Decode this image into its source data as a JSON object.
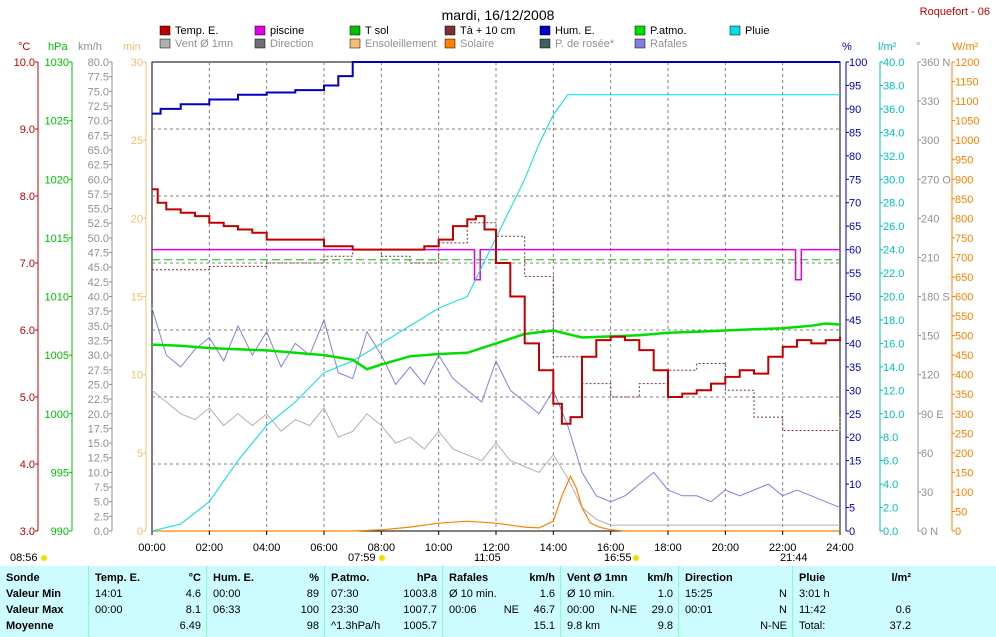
{
  "title": "mardi, 16/12/2008",
  "station": "Roquefort - 06",
  "colors": {
    "temp": "#c00000",
    "piscine": "#e000e0",
    "tsol": "#00c000",
    "t10": "#7a3030",
    "hum": "#0000c0",
    "patmo": "#00dd00",
    "pluie": "#00e0e0",
    "vent": "#b0b0b0",
    "direction": "#707070",
    "ensoleillement": "#f0c070",
    "solaire": "#ff8000",
    "rosee": "#406060",
    "rafales": "#8080e0",
    "grid": "#808080",
    "stats_bg": "#ccfcff"
  },
  "axis_units": {
    "left1": "°C",
    "left2": "hPa",
    "left3": "km/h",
    "left4": "min",
    "right1": "%",
    "right2": "l/m²",
    "right3": "°",
    "right4": "W/m²"
  },
  "legend": [
    {
      "label": "Temp. E.",
      "color": "#c00000"
    },
    {
      "label": "piscine",
      "color": "#e000e0"
    },
    {
      "label": "T sol",
      "color": "#00c000"
    },
    {
      "label": "Tà + 10 cm",
      "color": "#7a3030"
    },
    {
      "label": "Hum. E.",
      "color": "#0000c0"
    },
    {
      "label": "P.atmo.",
      "color": "#00dd00"
    },
    {
      "label": "Pluie",
      "color": "#00e0e0"
    },
    {
      "label": "Vent Ø 1mn",
      "color": "#b0b0b0"
    },
    {
      "label": "Direction",
      "color": "#707070"
    },
    {
      "label": "Ensoleillement",
      "color": "#f0c070"
    },
    {
      "label": "Solaire",
      "color": "#ff8000"
    },
    {
      "label": "P. de rosée*",
      "color": "#406060"
    },
    {
      "label": "Rafales",
      "color": "#8080e0"
    }
  ],
  "chart_data": {
    "type": "line",
    "title": "mardi, 16/12/2008",
    "x_ticks": [
      "00:00",
      "02:00",
      "04:00",
      "06:00",
      "08:00",
      "10:00",
      "12:00",
      "14:00",
      "16:00",
      "18:00",
      "20:00",
      "22:00",
      "24:00"
    ],
    "x_range_hours": [
      0,
      24
    ],
    "grid": true,
    "legend_placement": "top",
    "y_axes": {
      "temp_c": {
        "min": 3.0,
        "max": 10.0,
        "ticks": [
          "3.0",
          "4.0",
          "5.0",
          "6.0",
          "7.0",
          "8.0",
          "9.0",
          "10.0"
        ]
      },
      "pressure_hpa": {
        "min": 990,
        "max": 1030,
        "ticks": [
          "990",
          "995",
          "1000",
          "1005",
          "1010",
          "1015",
          "1020",
          "1025",
          "1030"
        ]
      },
      "wind_kmh": {
        "min": 0.0,
        "max": 80.0,
        "ticks": [
          "0.0",
          "2.5",
          "5.0",
          "7.5",
          "10.0",
          "12.5",
          "15.0",
          "17.5",
          "20.0",
          "22.5",
          "25.0",
          "27.5",
          "30.0",
          "32.5",
          "35.0",
          "37.5",
          "40.0",
          "42.5",
          "45.0",
          "47.5",
          "50.0",
          "52.5",
          "55.0",
          "57.5",
          "60.0",
          "62.5",
          "65.0",
          "67.5",
          "70.0",
          "72.5",
          "75.0",
          "77.5",
          "80.0"
        ]
      },
      "minutes": {
        "min": 0,
        "max": 30,
        "ticks": [
          "0",
          "5",
          "10",
          "15",
          "20",
          "25",
          "30"
        ]
      },
      "humidity_pct": {
        "min": 0,
        "max": 100,
        "ticks": [
          "0",
          "5",
          "10",
          "15",
          "20",
          "25",
          "30",
          "35",
          "40",
          "45",
          "50",
          "55",
          "60",
          "65",
          "70",
          "75",
          "80",
          "85",
          "90",
          "95",
          "100"
        ]
      },
      "rain_lm2": {
        "min": 0.0,
        "max": 40.0,
        "ticks": [
          "0.0",
          "2.0",
          "4.0",
          "6.0",
          "8.0",
          "10.0",
          "12.0",
          "14.0",
          "16.0",
          "18.0",
          "20.0",
          "22.0",
          "24.0",
          "26.0",
          "28.0",
          "30.0",
          "32.0",
          "34.0",
          "36.0",
          "38.0",
          "40.0"
        ]
      },
      "direction_deg": {
        "min": 0,
        "max": 360,
        "ticks": [
          "0  N",
          "30",
          "60",
          "90  E",
          "120",
          "150",
          "180  S",
          "210",
          "240",
          "270  O",
          "300",
          "330",
          "360  N"
        ]
      },
      "solar_wm2": {
        "min": 0,
        "max": 1200,
        "ticks": [
          "0",
          "50",
          "100",
          "150",
          "200",
          "250",
          "300",
          "350",
          "400",
          "450",
          "500",
          "550",
          "600",
          "650",
          "700",
          "750",
          "800",
          "850",
          "900",
          "950",
          "1000",
          "1050",
          "1100",
          "1150",
          "1200"
        ]
      }
    },
    "series": [
      {
        "name": "Temp. E.",
        "axis": "temp_c",
        "x": [
          0,
          0.2,
          0.5,
          1,
          1.5,
          2,
          2.5,
          3,
          3.5,
          4,
          5,
          6,
          7,
          8,
          9,
          9.5,
          10,
          10.5,
          11,
          11.3,
          11.6,
          12,
          12.5,
          13,
          13.5,
          14,
          14.3,
          14.6,
          15,
          15.5,
          16,
          16.5,
          17,
          17.5,
          18,
          18.5,
          19,
          19.5,
          20,
          20.5,
          21,
          21.5,
          22,
          22.5,
          23,
          23.5,
          24
        ],
        "y": [
          8.1,
          7.9,
          7.8,
          7.75,
          7.7,
          7.6,
          7.55,
          7.5,
          7.45,
          7.35,
          7.35,
          7.25,
          7.2,
          7.2,
          7.2,
          7.25,
          7.35,
          7.55,
          7.65,
          7.7,
          7.5,
          7.0,
          6.5,
          5.8,
          5.4,
          4.9,
          4.6,
          4.7,
          5.6,
          5.85,
          5.9,
          5.85,
          5.7,
          5.4,
          5.0,
          5.05,
          5.1,
          5.2,
          5.3,
          5.4,
          5.35,
          5.6,
          5.75,
          5.85,
          5.8,
          5.85,
          5.9
        ]
      },
      {
        "name": "piscine",
        "axis": "temp_c",
        "x": [
          0,
          11.2,
          11.25,
          11.4,
          11.45,
          22.4,
          22.45,
          22.6,
          22.65,
          24
        ],
        "y": [
          7.2,
          7.2,
          6.75,
          6.75,
          7.2,
          7.2,
          6.75,
          6.75,
          7.2,
          7.2
        ]
      },
      {
        "name": "T sol",
        "axis": "temp_c",
        "x": [
          0,
          24
        ],
        "y": [
          7.05,
          7.05
        ]
      },
      {
        "name": "P.atmo.",
        "axis": "pressure_hpa",
        "x": [
          0,
          1,
          2,
          3,
          4,
          5,
          6,
          7,
          7.5,
          8,
          9,
          10,
          11,
          12,
          13,
          14,
          15,
          16,
          17,
          18,
          19,
          20,
          21,
          22,
          23,
          23.5,
          24
        ],
        "y": [
          1005.9,
          1005.8,
          1005.6,
          1005.5,
          1005.4,
          1005.2,
          1005.0,
          1004.6,
          1003.8,
          1004.2,
          1004.9,
          1005.1,
          1005.2,
          1006.0,
          1006.8,
          1007.1,
          1006.5,
          1006.6,
          1006.7,
          1006.9,
          1007.0,
          1007.1,
          1007.2,
          1007.3,
          1007.5,
          1007.7,
          1007.6
        ]
      },
      {
        "name": "Hum. E.",
        "axis": "humidity_pct",
        "x": [
          0,
          0.3,
          1,
          2,
          3,
          4,
          5,
          6,
          6.5,
          7,
          8,
          9,
          10,
          11,
          12,
          13,
          14,
          24
        ],
        "y": [
          89,
          90,
          91,
          92,
          93,
          93.5,
          94,
          95,
          97,
          100,
          100,
          100,
          100,
          100,
          100,
          100,
          100,
          100
        ]
      },
      {
        "name": "Pluie",
        "axis": "rain_lm2",
        "x": [
          0,
          1,
          2,
          3,
          4,
          5,
          6,
          7,
          8,
          9,
          10,
          11,
          12,
          13,
          13.5,
          14,
          14.5,
          14.8,
          15,
          16,
          24
        ],
        "y": [
          0,
          0.6,
          2.5,
          6,
          9,
          11,
          13.5,
          14.5,
          16,
          17.5,
          19,
          20,
          25,
          30,
          33,
          35.5,
          37.2,
          37.2,
          37.2,
          37.2,
          37.2
        ]
      },
      {
        "name": "Solaire",
        "axis": "solar_wm2",
        "x": [
          0,
          7,
          8,
          9,
          10,
          11,
          12,
          13,
          13.5,
          14,
          14.3,
          14.6,
          14.8,
          15,
          15.3,
          15.6,
          16,
          16.5,
          17,
          24
        ],
        "y": [
          0,
          0,
          3,
          10,
          20,
          25,
          20,
          10,
          8,
          25,
          90,
          140,
          110,
          60,
          20,
          10,
          3,
          0,
          0,
          0
        ]
      },
      {
        "name": "Tà + 10 cm",
        "axis": "temp_c",
        "x": [
          0,
          1,
          2,
          3,
          4,
          5,
          6,
          7,
          8,
          9,
          10,
          11,
          12,
          13,
          14,
          15,
          16,
          17,
          18,
          19,
          20,
          21,
          22,
          23,
          24
        ],
        "y": [
          6.9,
          6.9,
          6.95,
          6.95,
          7.0,
          7.0,
          7.1,
          7.2,
          7.1,
          7.0,
          7.3,
          7.6,
          7.4,
          6.8,
          5.6,
          5.2,
          5.0,
          5.2,
          5.4,
          5.5,
          5.1,
          4.7,
          4.5,
          4.5,
          4.7
        ]
      },
      {
        "name": "Rafales",
        "axis": "wind_kmh",
        "x": [
          0,
          0.5,
          1,
          1.5,
          2,
          2.5,
          3,
          3.5,
          4,
          4.5,
          5,
          5.5,
          6,
          6.5,
          7,
          7.5,
          8,
          8.5,
          9,
          9.5,
          10,
          10.5,
          11,
          11.5,
          12,
          12.5,
          13,
          13.5,
          14,
          14.5,
          15,
          15.5,
          16,
          16.5,
          17,
          17.5,
          18,
          18.5,
          19,
          19.5,
          20,
          20.5,
          21,
          21.5,
          22,
          22.5,
          23,
          23.5,
          24
        ],
        "y": [
          38,
          30,
          28,
          31,
          33,
          29,
          35,
          30,
          34,
          28,
          32,
          30,
          36,
          27,
          26,
          34,
          30,
          25,
          28,
          25,
          30,
          26,
          24,
          22,
          29,
          24,
          22,
          20,
          24,
          18,
          10,
          6,
          5,
          6,
          8,
          10,
          7,
          6,
          6,
          5,
          7,
          6,
          7,
          8,
          6,
          7,
          6,
          5,
          4
        ]
      },
      {
        "name": "Vent Ø 1mn",
        "axis": "wind_kmh",
        "x": [
          0,
          0.5,
          1,
          1.5,
          2,
          2.5,
          3,
          3.5,
          4,
          4.5,
          5,
          5.5,
          6,
          6.5,
          7,
          7.5,
          8,
          8.5,
          9,
          9.5,
          10,
          10.5,
          11,
          11.5,
          12,
          12.5,
          13,
          13.5,
          14,
          14.5,
          15,
          15.5,
          16,
          17,
          18,
          19,
          20,
          21,
          22,
          23,
          24
        ],
        "y": [
          24,
          22,
          20,
          19,
          21,
          18,
          20,
          18,
          20,
          17,
          19,
          18,
          21,
          16,
          17,
          20,
          18,
          15,
          16,
          14,
          17,
          14,
          13,
          12,
          15,
          12,
          11,
          10,
          13,
          9,
          4,
          2,
          1,
          1,
          1,
          1,
          1,
          1,
          1,
          1,
          1
        ]
      }
    ]
  },
  "time_markers": {
    "sunrise_left": "08:56",
    "sunrise_mid": "07:59",
    "sun_high": "11:05",
    "sunset": "16:55",
    "moon": "21:44"
  },
  "stats": {
    "row_labels": [
      "Sonde",
      "Valeur Min",
      "Valeur Max",
      "Moyenne"
    ],
    "columns": [
      {
        "title": "Temp. E.",
        "unit": "°C",
        "rows": [
          [
            "14:01",
            "",
            "4.6"
          ],
          [
            "00:00",
            "",
            "8.1"
          ],
          [
            "",
            "",
            "6.49"
          ]
        ]
      },
      {
        "title": "Hum. E.",
        "unit": "%",
        "rows": [
          [
            "00:00",
            "",
            "89"
          ],
          [
            "06:33",
            "",
            "100"
          ],
          [
            "",
            "",
            "98"
          ]
        ]
      },
      {
        "title": "P.atmo.",
        "unit": "hPa",
        "rows": [
          [
            "07:30",
            "",
            "1003.8"
          ],
          [
            "23:30",
            "",
            "1007.7"
          ],
          [
            "^1.3hPa/h",
            "",
            "1005.7"
          ]
        ]
      },
      {
        "title": "Rafales",
        "unit": "km/h",
        "rows": [
          [
            "Ø 10 min.",
            "",
            "1.6"
          ],
          [
            "00:06",
            "NE",
            "46.7"
          ],
          [
            "",
            "",
            "15.1"
          ]
        ]
      },
      {
        "title": "Vent Ø 1mn",
        "unit": "km/h",
        "rows": [
          [
            "Ø 10 min.",
            "",
            "1.0"
          ],
          [
            "00:00",
            "N-NE",
            "29.0"
          ],
          [
            "9.8 km",
            "",
            "9.8"
          ]
        ]
      },
      {
        "title": "Direction",
        "unit": "",
        "rows": [
          [
            "15:25",
            "",
            "N"
          ],
          [
            "00:01",
            "",
            "N"
          ],
          [
            "",
            "",
            "N-NE"
          ]
        ]
      },
      {
        "title": "Pluie",
        "unit": "l/m²",
        "rows": [
          [
            "3:01 h",
            "",
            ""
          ],
          [
            "11:42",
            "",
            "0.6"
          ],
          [
            "Total:",
            "",
            "37.2"
          ]
        ]
      }
    ]
  }
}
